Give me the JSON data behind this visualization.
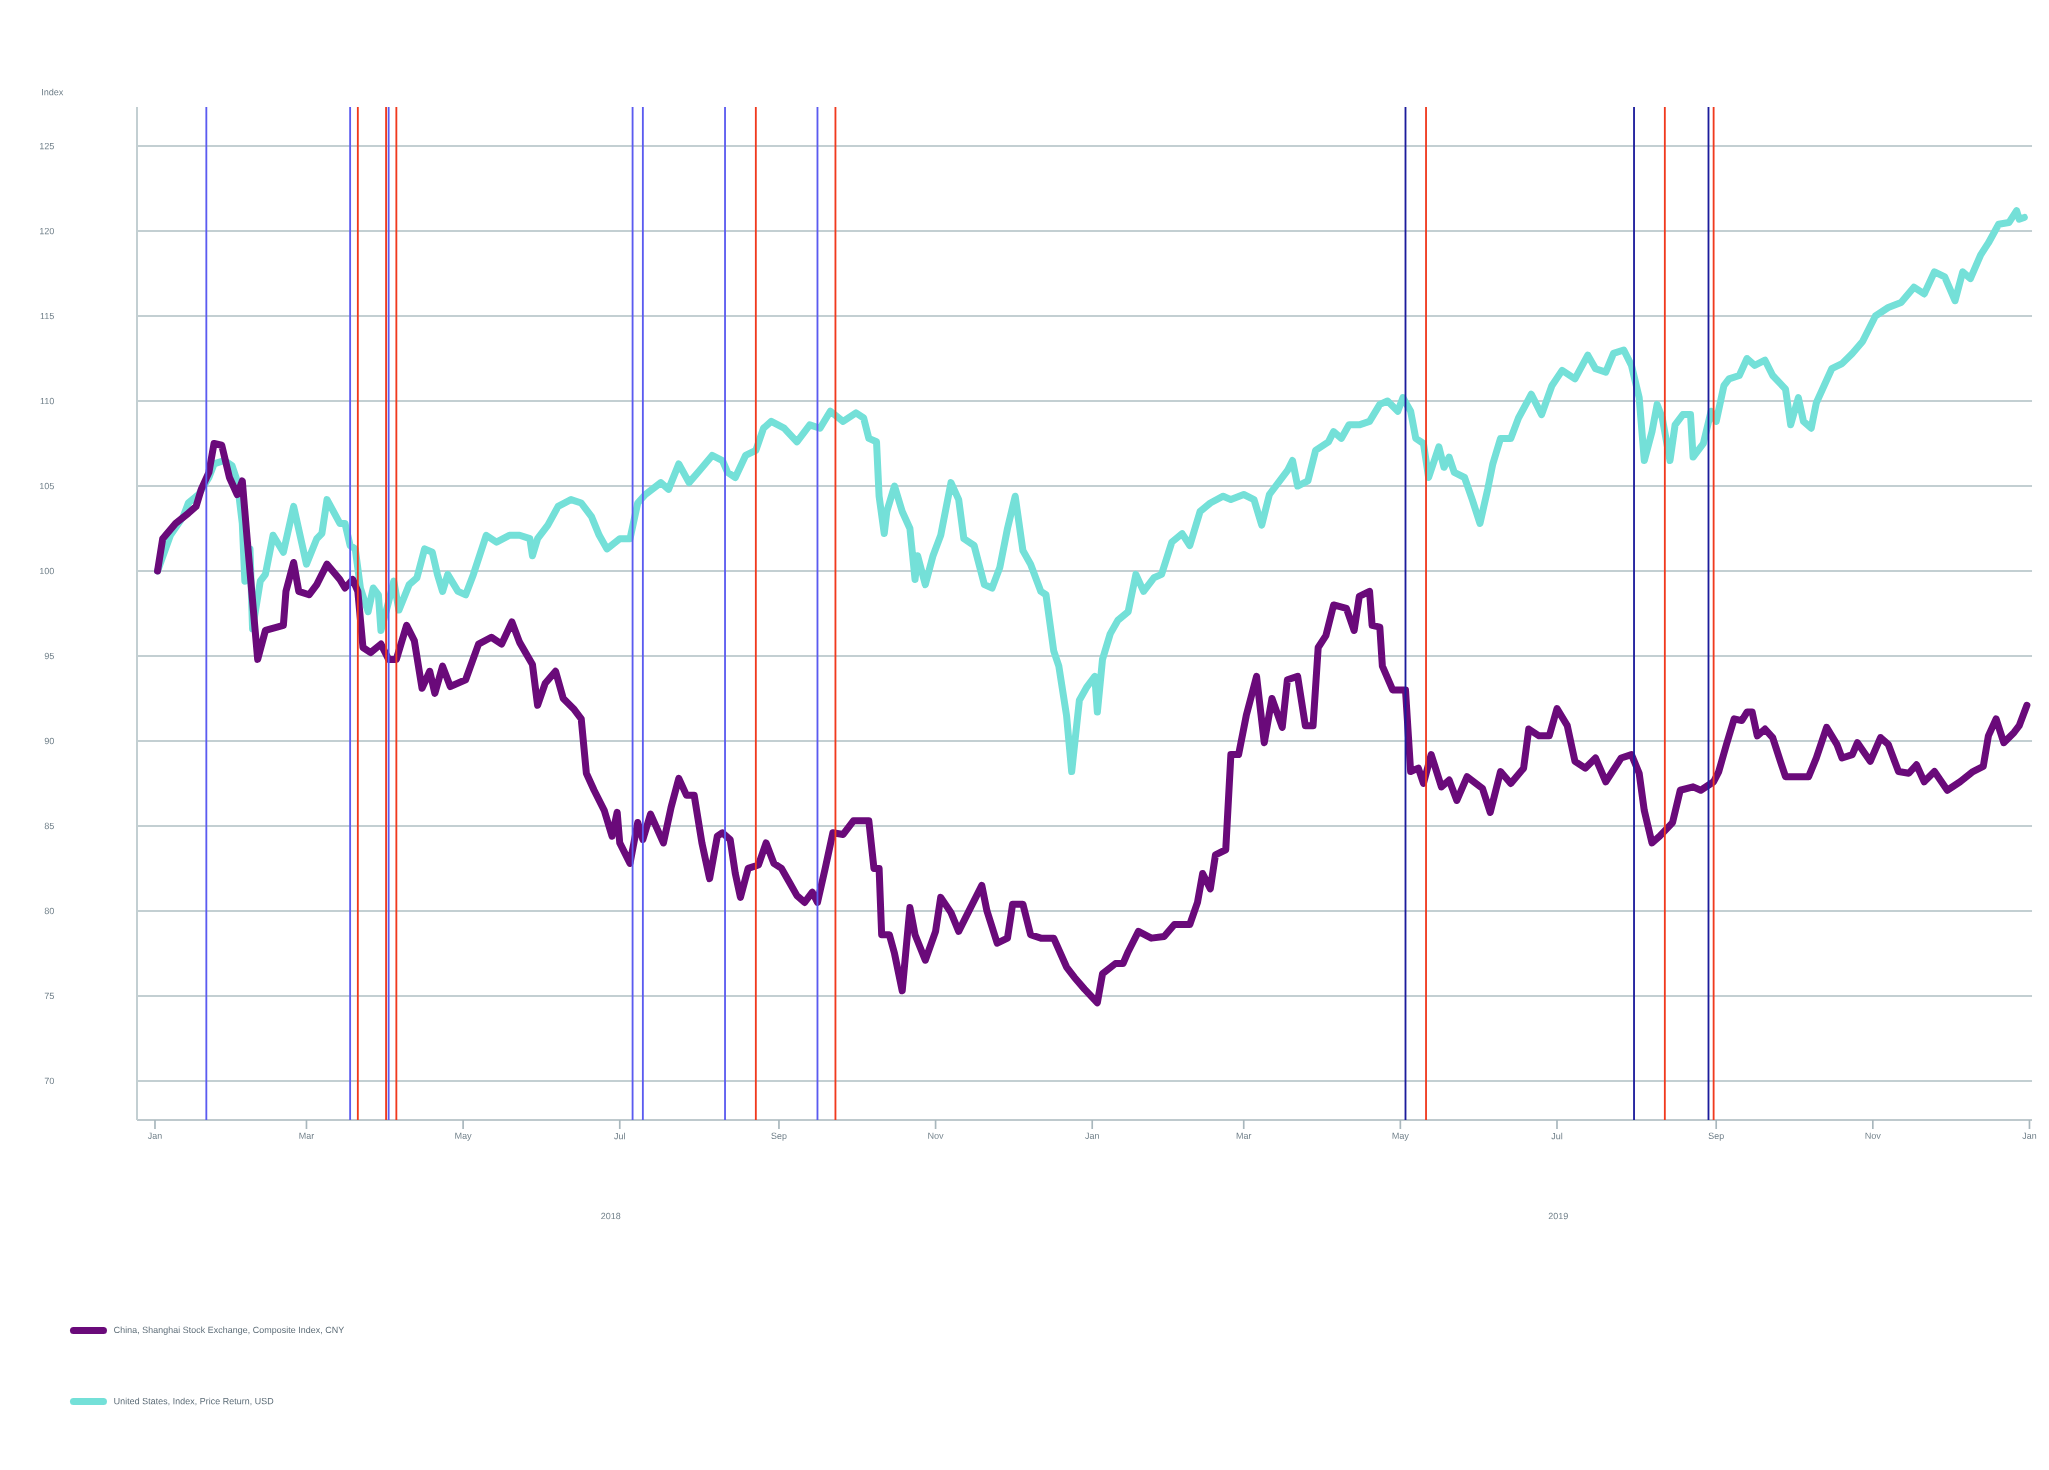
{
  "chart_data": {
    "type": "line",
    "ylabel": "Index",
    "xlim": [
      "2017-12-25",
      "2020-01-02"
    ],
    "ylim": [
      67.7,
      127.3
    ],
    "yticks": [
      70,
      75,
      80,
      85,
      90,
      95,
      100,
      105,
      110,
      115,
      120,
      125
    ],
    "xticks": [
      {
        "value": "2018-01-01",
        "label": "Jan"
      },
      {
        "value": "2018-03-01",
        "label": "Mar"
      },
      {
        "value": "2018-05-01",
        "label": "May"
      },
      {
        "value": "2018-07-01",
        "label": "Jul"
      },
      {
        "value": "2018-09-01",
        "label": "Sep"
      },
      {
        "value": "2018-11-01",
        "label": "Nov"
      },
      {
        "value": "2019-01-01",
        "label": "Jan"
      },
      {
        "value": "2019-03-01",
        "label": "Mar"
      },
      {
        "value": "2019-05-01",
        "label": "May"
      },
      {
        "value": "2019-07-01",
        "label": "Jul"
      },
      {
        "value": "2019-09-01",
        "label": "Sep"
      },
      {
        "value": "2019-11-01",
        "label": "Nov"
      },
      {
        "value": "2020-01-01",
        "label": "Jan"
      }
    ],
    "grid": "y",
    "legend": "bottom left",
    "line_style": "solid",
    "annotations": [
      "2018",
      "2019"
    ],
    "ref_lines": [
      {
        "axis": "x",
        "value": "2018-01-21",
        "color": "#5b5bf0"
      },
      {
        "axis": "x",
        "value": "2018-03-18",
        "color": "#5b5bf0"
      },
      {
        "axis": "x",
        "value": "2018-03-21",
        "color": "#f03a1e"
      },
      {
        "axis": "x",
        "value": "2018-04-01",
        "color": "#f03a1e"
      },
      {
        "axis": "x",
        "value": "2018-04-02",
        "color": "#5b5bf0"
      },
      {
        "axis": "x",
        "value": "2018-04-05",
        "color": "#f03a1e"
      },
      {
        "axis": "x",
        "value": "2018-07-06",
        "color": "#5b5bf0"
      },
      {
        "axis": "x",
        "value": "2018-07-10",
        "color": "#5b5bf0"
      },
      {
        "axis": "x",
        "value": "2018-08-11",
        "color": "#5b5bf0"
      },
      {
        "axis": "x",
        "value": "2018-08-23",
        "color": "#f03a1e"
      },
      {
        "axis": "x",
        "value": "2018-09-16",
        "color": "#5b5bf0"
      },
      {
        "axis": "x",
        "value": "2018-09-23",
        "color": "#f03a1e"
      },
      {
        "axis": "x",
        "value": "2019-05-03",
        "color": "#1c1c9c"
      },
      {
        "axis": "x",
        "value": "2019-05-11",
        "color": "#f03a1e"
      },
      {
        "axis": "x",
        "value": "2019-07-31",
        "color": "#1c1c9c"
      },
      {
        "axis": "x",
        "value": "2019-08-12",
        "color": "#f03a1e"
      },
      {
        "axis": "x",
        "value": "2019-08-29",
        "color": "#1c1c9c"
      },
      {
        "axis": "x",
        "value": "2019-08-31",
        "color": "#f03a1e"
      }
    ],
    "series": [
      {
        "name": "China, Shanghai Stock Exchange, Composite Index, CNY",
        "color": "#6a0a7a",
        "x": [
          "2018-01-02",
          "2018-01-04",
          "2018-01-09",
          "2018-01-14",
          "2018-01-17",
          "2018-01-19",
          "2018-01-22",
          "2018-01-24",
          "2018-01-27",
          "2018-01-30",
          "2018-02-02",
          "2018-02-04",
          "2018-02-06",
          "2018-02-10",
          "2018-02-13",
          "2018-02-20",
          "2018-02-21",
          "2018-02-24",
          "2018-02-26",
          "2018-03-02",
          "2018-03-05",
          "2018-03-09",
          "2018-03-14",
          "2018-03-16",
          "2018-03-19",
          "2018-03-21",
          "2018-03-23",
          "2018-03-26",
          "2018-03-30",
          "2018-04-02",
          "2018-04-05",
          "2018-04-09",
          "2018-04-12",
          "2018-04-15",
          "2018-04-18",
          "2018-04-20",
          "2018-04-23",
          "2018-04-26",
          "2018-05-02",
          "2018-05-07",
          "2018-05-12",
          "2018-05-16",
          "2018-05-20",
          "2018-05-23",
          "2018-05-28",
          "2018-05-30",
          "2018-06-02",
          "2018-06-06",
          "2018-06-09",
          "2018-06-13",
          "2018-06-16",
          "2018-06-18",
          "2018-06-21",
          "2018-06-25",
          "2018-06-28",
          "2018-06-30",
          "2018-07-01",
          "2018-07-05",
          "2018-07-08",
          "2018-07-10",
          "2018-07-13",
          "2018-07-18",
          "2018-07-21",
          "2018-07-24",
          "2018-07-27",
          "2018-07-30",
          "2018-08-02",
          "2018-08-05",
          "2018-08-08",
          "2018-08-10",
          "2018-08-13",
          "2018-08-15",
          "2018-08-17",
          "2018-08-20",
          "2018-08-24",
          "2018-08-27",
          "2018-08-30",
          "2018-09-02",
          "2018-09-05",
          "2018-09-08",
          "2018-09-11",
          "2018-09-14",
          "2018-09-16",
          "2018-09-19",
          "2018-09-22",
          "2018-09-26",
          "2018-09-30",
          "2018-10-06",
          "2018-10-08",
          "2018-10-10",
          "2018-10-11",
          "2018-10-14",
          "2018-10-16",
          "2018-10-19",
          "2018-10-22",
          "2018-10-24",
          "2018-10-28",
          "2018-11-01",
          "2018-11-03",
          "2018-11-07",
          "2018-11-10",
          "2018-11-14",
          "2018-11-19",
          "2018-11-21",
          "2018-11-25",
          "2018-11-29",
          "2018-12-01",
          "2018-12-05",
          "2018-12-08",
          "2018-12-12",
          "2018-12-17",
          "2018-12-22",
          "2018-12-25",
          "2018-12-29",
          "2019-01-03",
          "2019-01-05",
          "2019-01-10",
          "2019-01-13",
          "2019-01-15",
          "2019-01-19",
          "2019-01-24",
          "2019-01-29",
          "2019-02-02",
          "2019-02-08",
          "2019-02-11",
          "2019-02-13",
          "2019-02-16",
          "2019-02-18",
          "2019-02-22",
          "2019-02-24",
          "2019-02-27",
          "2019-03-02",
          "2019-03-06",
          "2019-03-09",
          "2019-03-12",
          "2019-03-16",
          "2019-03-18",
          "2019-03-22",
          "2019-03-25",
          "2019-03-28",
          "2019-03-30",
          "2019-04-02",
          "2019-04-05",
          "2019-04-10",
          "2019-04-13",
          "2019-04-15",
          "2019-04-19",
          "2019-04-20",
          "2019-04-23",
          "2019-04-24",
          "2019-04-28",
          "2019-05-03",
          "2019-05-05",
          "2019-05-08",
          "2019-05-10",
          "2019-05-13",
          "2019-05-17",
          "2019-05-20",
          "2019-05-23",
          "2019-05-27",
          "2019-06-02",
          "2019-06-05",
          "2019-06-09",
          "2019-06-13",
          "2019-06-18",
          "2019-06-20",
          "2019-06-24",
          "2019-06-28",
          "2019-07-01",
          "2019-07-05",
          "2019-07-08",
          "2019-07-12",
          "2019-07-16",
          "2019-07-20",
          "2019-07-26",
          "2019-07-30",
          "2019-08-02",
          "2019-08-04",
          "2019-08-07",
          "2019-08-10",
          "2019-08-15",
          "2019-08-18",
          "2019-08-23",
          "2019-08-26",
          "2019-08-31",
          "2019-09-02",
          "2019-09-05",
          "2019-09-08",
          "2019-09-11",
          "2019-09-13",
          "2019-09-15",
          "2019-09-17",
          "2019-09-20",
          "2019-09-23",
          "2019-09-26",
          "2019-09-28",
          "2019-10-07",
          "2019-10-10",
          "2019-10-14",
          "2019-10-18",
          "2019-10-20",
          "2019-10-24",
          "2019-10-26",
          "2019-10-31",
          "2019-11-04",
          "2019-11-07",
          "2019-11-11",
          "2019-11-15",
          "2019-11-18",
          "2019-11-21",
          "2019-11-25",
          "2019-11-30",
          "2019-12-05",
          "2019-12-10",
          "2019-12-14",
          "2019-12-16",
          "2019-12-19",
          "2019-12-22",
          "2019-12-26",
          "2019-12-28",
          "2019-12-31"
        ],
        "values": [
          100.0,
          101.9,
          102.8,
          103.4,
          103.8,
          104.8,
          105.8,
          107.5,
          107.4,
          105.5,
          104.5,
          105.3,
          101.7,
          94.8,
          96.5,
          96.8,
          98.8,
          100.5,
          98.8,
          98.6,
          99.2,
          100.4,
          99.5,
          99.0,
          99.5,
          98.8,
          95.5,
          95.2,
          95.7,
          94.8,
          94.8,
          96.8,
          95.9,
          93.1,
          94.1,
          92.8,
          94.4,
          93.2,
          93.6,
          95.7,
          96.1,
          95.7,
          97.0,
          95.8,
          94.5,
          92.1,
          93.4,
          94.1,
          92.5,
          91.9,
          91.3,
          88.1,
          87.1,
          85.9,
          84.4,
          85.8,
          84.0,
          82.8,
          85.2,
          84.2,
          85.7,
          84.0,
          86.1,
          87.8,
          86.8,
          86.8,
          84.0,
          81.9,
          84.4,
          84.6,
          84.2,
          82.2,
          80.8,
          82.5,
          82.7,
          84.0,
          82.8,
          82.5,
          81.7,
          80.9,
          80.5,
          81.1,
          80.5,
          82.5,
          84.6,
          84.5,
          85.3,
          85.3,
          82.5,
          82.5,
          78.6,
          78.6,
          77.5,
          75.3,
          80.2,
          78.6,
          77.1,
          78.8,
          80.8,
          79.9,
          78.8,
          80.0,
          81.5,
          80.0,
          78.1,
          78.4,
          80.4,
          80.4,
          78.6,
          78.4,
          78.4,
          76.7,
          76.1,
          75.4,
          74.6,
          76.3,
          76.9,
          76.9,
          77.6,
          78.8,
          78.4,
          78.5,
          79.2,
          79.2,
          80.5,
          82.2,
          81.3,
          83.3,
          83.6,
          89.2,
          89.2,
          91.5,
          93.8,
          89.9,
          92.5,
          90.8,
          93.6,
          93.8,
          90.9,
          90.9,
          95.5,
          96.2,
          98.0,
          97.8,
          96.5,
          98.5,
          98.8,
          96.8,
          96.7,
          94.4,
          93.0,
          93.0,
          88.2,
          88.4,
          87.5,
          89.2,
          87.3,
          87.7,
          86.5,
          87.9,
          87.2,
          85.8,
          88.2,
          87.5,
          88.4,
          90.7,
          90.3,
          90.3,
          91.9,
          90.9,
          88.8,
          88.4,
          89.0,
          87.6,
          89.0,
          89.2,
          88.1,
          85.9,
          84.0,
          84.4,
          85.2,
          87.1,
          87.3,
          87.1,
          87.6,
          88.2,
          89.8,
          91.3,
          91.2,
          91.7,
          91.7,
          90.3,
          90.7,
          90.2,
          88.8,
          87.9,
          87.9,
          89.0,
          90.8,
          89.8,
          89.0,
          89.2,
          89.9,
          88.8,
          90.2,
          89.8,
          88.2,
          88.1,
          88.6,
          87.6,
          88.2,
          87.1,
          87.6,
          88.2,
          88.5,
          90.3,
          91.3,
          89.9,
          90.5,
          90.9,
          92.1
        ]
      },
      {
        "name": "United States, Index, Price Return, USD",
        "color": "#74e0d8",
        "x": [
          "2018-01-02",
          "2018-01-07",
          "2018-01-12",
          "2018-01-14",
          "2018-01-18",
          "2018-01-22",
          "2018-01-24",
          "2018-01-28",
          "2018-01-31",
          "2018-02-02",
          "2018-02-04",
          "2018-02-05",
          "2018-02-07",
          "2018-02-08",
          "2018-02-11",
          "2018-02-13",
          "2018-02-16",
          "2018-02-20",
          "2018-02-24",
          "2018-03-01",
          "2018-03-05",
          "2018-03-07",
          "2018-03-09",
          "2018-03-14",
          "2018-03-16",
          "2018-03-18",
          "2018-03-20",
          "2018-03-22",
          "2018-03-25",
          "2018-03-27",
          "2018-03-29",
          "2018-03-30",
          "2018-04-02",
          "2018-04-04",
          "2018-04-06",
          "2018-04-10",
          "2018-04-13",
          "2018-04-16",
          "2018-04-19",
          "2018-04-21",
          "2018-04-23",
          "2018-04-25",
          "2018-04-29",
          "2018-05-02",
          "2018-05-05",
          "2018-05-10",
          "2018-05-14",
          "2018-05-19",
          "2018-05-23",
          "2018-05-27",
          "2018-05-28",
          "2018-05-30",
          "2018-06-03",
          "2018-06-07",
          "2018-06-12",
          "2018-06-16",
          "2018-06-20",
          "2018-06-23",
          "2018-06-26",
          "2018-07-01",
          "2018-07-05",
          "2018-07-08",
          "2018-07-11",
          "2018-07-17",
          "2018-07-20",
          "2018-07-24",
          "2018-07-28",
          "2018-08-01",
          "2018-08-06",
          "2018-08-10",
          "2018-08-12",
          "2018-08-15",
          "2018-08-19",
          "2018-08-23",
          "2018-08-26",
          "2018-08-29",
          "2018-09-03",
          "2018-09-08",
          "2018-09-13",
          "2018-09-17",
          "2018-09-21",
          "2018-09-26",
          "2018-10-01",
          "2018-10-04",
          "2018-10-06",
          "2018-10-09",
          "2018-10-10",
          "2018-10-12",
          "2018-10-13",
          "2018-10-16",
          "2018-10-19",
          "2018-10-22",
          "2018-10-24",
          "2018-10-25",
          "2018-10-28",
          "2018-10-31",
          "2018-11-03",
          "2018-11-07",
          "2018-11-10",
          "2018-11-12",
          "2018-11-16",
          "2018-11-20",
          "2018-11-23",
          "2018-11-26",
          "2018-11-29",
          "2018-12-02",
          "2018-12-05",
          "2018-12-08",
          "2018-12-12",
          "2018-12-14",
          "2018-12-17",
          "2018-12-19",
          "2018-12-22",
          "2018-12-24",
          "2018-12-27",
          "2018-12-30",
          "2019-01-02",
          "2019-01-03",
          "2019-01-05",
          "2019-01-08",
          "2019-01-11",
          "2019-01-15",
          "2019-01-18",
          "2019-01-21",
          "2019-01-25",
          "2019-01-28",
          "2019-02-01",
          "2019-02-05",
          "2019-02-08",
          "2019-02-12",
          "2019-02-16",
          "2019-02-21",
          "2019-02-24",
          "2019-03-01",
          "2019-03-05",
          "2019-03-08",
          "2019-03-11",
          "2019-03-15",
          "2019-03-18",
          "2019-03-20",
          "2019-03-22",
          "2019-03-26",
          "2019-03-29",
          "2019-04-03",
          "2019-04-05",
          "2019-04-08",
          "2019-04-11",
          "2019-04-15",
          "2019-04-19",
          "2019-04-23",
          "2019-04-26",
          "2019-04-30",
          "2019-05-02",
          "2019-05-05",
          "2019-05-07",
          "2019-05-10",
          "2019-05-12",
          "2019-05-16",
          "2019-05-18",
          "2019-05-20",
          "2019-05-22",
          "2019-05-26",
          "2019-05-29",
          "2019-06-01",
          "2019-06-04",
          "2019-06-06",
          "2019-06-09",
          "2019-06-13",
          "2019-06-16",
          "2019-06-21",
          "2019-06-25",
          "2019-06-29",
          "2019-07-03",
          "2019-07-08",
          "2019-07-13",
          "2019-07-16",
          "2019-07-20",
          "2019-07-23",
          "2019-07-27",
          "2019-07-30",
          "2019-08-02",
          "2019-08-04",
          "2019-08-07",
          "2019-08-09",
          "2019-08-11",
          "2019-08-14",
          "2019-08-16",
          "2019-08-19",
          "2019-08-22",
          "2019-08-23",
          "2019-08-27",
          "2019-08-30",
          "2019-09-01",
          "2019-09-04",
          "2019-09-06",
          "2019-09-10",
          "2019-09-13",
          "2019-09-16",
          "2019-09-20",
          "2019-09-23",
          "2019-09-28",
          "2019-09-30",
          "2019-10-03",
          "2019-10-05",
          "2019-10-08",
          "2019-10-10",
          "2019-10-13",
          "2019-10-16",
          "2019-10-20",
          "2019-10-24",
          "2019-10-28",
          "2019-11-02",
          "2019-11-07",
          "2019-11-12",
          "2019-11-17",
          "2019-11-21",
          "2019-11-25",
          "2019-11-29",
          "2019-12-03",
          "2019-12-06",
          "2019-12-09",
          "2019-12-13",
          "2019-12-16",
          "2019-12-20",
          "2019-12-24",
          "2019-12-27",
          "2019-12-28",
          "2019-12-30"
        ],
        "values": [
          100.0,
          102.1,
          103.2,
          104.0,
          104.5,
          105.5,
          106.3,
          106.5,
          106.2,
          105.3,
          102.8,
          99.4,
          101.3,
          96.6,
          99.4,
          99.8,
          102.1,
          101.1,
          103.8,
          100.4,
          101.9,
          102.2,
          104.2,
          102.8,
          102.8,
          101.5,
          101.3,
          99.0,
          97.6,
          99.0,
          98.6,
          96.5,
          98.2,
          99.4,
          97.7,
          99.2,
          99.6,
          101.3,
          101.1,
          99.8,
          98.8,
          99.8,
          98.8,
          98.6,
          99.8,
          102.1,
          101.7,
          102.1,
          102.1,
          101.9,
          100.9,
          101.9,
          102.7,
          103.8,
          104.2,
          104.0,
          103.2,
          102.1,
          101.3,
          101.9,
          101.9,
          104.0,
          104.5,
          105.2,
          104.8,
          106.3,
          105.2,
          105.9,
          106.8,
          106.5,
          105.8,
          105.5,
          106.8,
          107.1,
          108.4,
          108.8,
          108.4,
          107.6,
          108.6,
          108.4,
          109.4,
          108.8,
          109.3,
          109.0,
          107.8,
          107.6,
          104.4,
          102.2,
          103.5,
          105.0,
          103.5,
          102.5,
          99.5,
          100.9,
          99.2,
          100.9,
          102.1,
          105.2,
          104.2,
          101.9,
          101.5,
          99.2,
          99.0,
          100.2,
          102.5,
          104.4,
          101.2,
          100.4,
          98.8,
          98.6,
          95.3,
          94.4,
          91.5,
          88.2,
          92.4,
          93.2,
          93.8,
          91.7,
          94.8,
          96.3,
          97.1,
          97.6,
          99.8,
          98.8,
          99.6,
          99.8,
          101.7,
          102.2,
          101.5,
          103.5,
          104.0,
          104.4,
          104.2,
          104.5,
          104.2,
          102.7,
          104.5,
          105.3,
          105.9,
          106.5,
          105.0,
          105.3,
          107.1,
          107.6,
          108.2,
          107.8,
          108.6,
          108.6,
          108.8,
          109.8,
          110.0,
          109.4,
          110.2,
          109.4,
          107.8,
          107.5,
          105.5,
          107.3,
          106.1,
          106.7,
          105.8,
          105.5,
          104.2,
          102.8,
          104.8,
          106.3,
          107.8,
          107.8,
          109.0,
          110.4,
          109.2,
          110.9,
          111.8,
          111.3,
          112.7,
          111.9,
          111.7,
          112.8,
          113.0,
          112.1,
          110.2,
          106.5,
          108.2,
          109.8,
          109.0,
          106.5,
          108.6,
          109.2,
          109.2,
          106.7,
          107.5,
          109.4,
          108.8,
          110.9,
          111.3,
          111.5,
          112.5,
          112.1,
          112.4,
          111.5,
          110.7,
          108.6,
          110.2,
          108.8,
          108.4,
          109.9,
          110.9,
          111.9,
          112.2,
          112.8,
          113.5,
          115.0,
          115.5,
          115.8,
          116.7,
          116.3,
          117.6,
          117.3,
          115.9,
          117.6,
          117.2,
          118.6,
          119.3,
          120.4,
          120.5,
          121.2,
          120.7,
          120.8
        ]
      }
    ]
  }
}
